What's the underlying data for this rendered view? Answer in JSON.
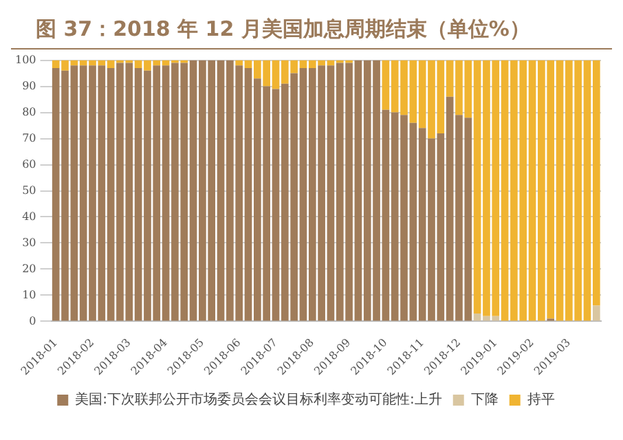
{
  "chart_data": {
    "type": "bar",
    "title": "图 37：2018 年 12 月美国加息周期结束（单位%）",
    "categories": [
      "2018-01",
      null,
      null,
      null,
      "2018-02",
      null,
      null,
      null,
      "2018-03",
      null,
      null,
      null,
      "2018-04",
      null,
      null,
      null,
      "2018-05",
      null,
      null,
      null,
      "2018-06",
      null,
      null,
      null,
      "2018-07",
      null,
      null,
      null,
      "2018-08",
      null,
      null,
      null,
      "2018-09",
      null,
      null,
      null,
      "2018-10",
      null,
      null,
      null,
      "2018-11",
      null,
      null,
      null,
      "2018-12",
      null,
      null,
      null,
      "2019-01",
      null,
      null,
      null,
      "2019-02",
      null,
      null,
      null,
      "2019-03",
      null,
      null,
      null
    ],
    "stacked": true,
    "series": [
      {
        "name": "美国:下次联邦公开市场委员会会议目标利率变动可能性:上升",
        "color": "#a07c5a",
        "values": [
          97,
          96,
          98,
          98,
          98,
          98,
          97,
          99,
          99,
          97,
          96,
          98,
          98,
          99,
          99,
          100,
          100,
          100,
          100,
          100,
          98,
          97,
          93,
          90,
          89,
          91,
          95,
          97,
          97,
          98,
          98,
          99,
          99,
          100,
          100,
          100,
          81,
          80,
          79,
          76,
          74,
          70,
          72,
          86,
          79,
          78,
          0,
          0,
          0,
          0,
          0,
          0,
          0,
          0,
          1,
          0,
          0,
          0,
          0,
          0
        ]
      },
      {
        "name": "下降",
        "color": "#d9c6a0",
        "values": [
          0,
          0,
          0,
          0,
          0,
          0,
          0,
          0,
          0,
          0,
          0,
          0,
          0,
          0,
          0,
          0,
          0,
          0,
          0,
          0,
          0,
          0,
          0,
          0,
          0,
          0,
          0,
          0,
          0,
          0,
          0,
          0,
          0,
          0,
          0,
          0,
          0,
          0,
          0,
          0,
          0,
          0,
          0,
          0,
          0,
          0,
          3,
          2,
          2,
          0,
          0,
          0,
          0,
          0,
          0,
          0,
          0,
          0,
          0,
          6
        ]
      },
      {
        "name": "持平",
        "color": "#f0b431",
        "values": [
          3,
          4,
          2,
          2,
          2,
          2,
          3,
          1,
          1,
          3,
          4,
          2,
          2,
          1,
          1,
          0,
          0,
          0,
          0,
          0,
          2,
          3,
          7,
          10,
          11,
          9,
          5,
          3,
          3,
          2,
          2,
          1,
          1,
          0,
          0,
          0,
          19,
          20,
          21,
          24,
          26,
          30,
          28,
          14,
          21,
          22,
          97,
          98,
          98,
          100,
          100,
          100,
          100,
          100,
          99,
          100,
          100,
          100,
          100,
          94
        ]
      }
    ],
    "ylim": [
      0,
      100
    ],
    "yticks": [
      0,
      10,
      20,
      30,
      40,
      50,
      60,
      70,
      80,
      90,
      100
    ],
    "grid": "y",
    "legend": "bottom"
  }
}
